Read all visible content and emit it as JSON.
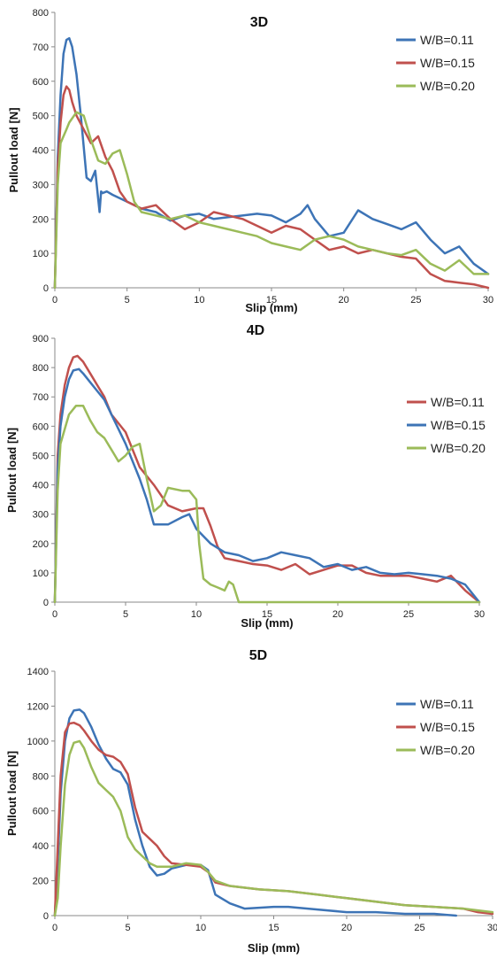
{
  "chart_data": [
    {
      "type": "line",
      "title": "3D",
      "xlabel": "Slip (mm)",
      "ylabel": "Pullout load [N]",
      "xlim": [
        0,
        30
      ],
      "ylim": [
        0,
        800
      ],
      "xticks": [
        0,
        5,
        10,
        15,
        20,
        25,
        30
      ],
      "yticks": [
        0,
        100,
        200,
        300,
        400,
        500,
        600,
        700,
        800
      ],
      "grid": false,
      "legend": "top-right",
      "series": [
        {
          "name": "W/B=0.11",
          "color": "#3d74b6",
          "x": [
            0,
            0.2,
            0.4,
            0.6,
            0.8,
            1.0,
            1.2,
            1.5,
            1.8,
            2.2,
            2.5,
            2.8,
            3.1,
            3.2,
            3.3,
            3.6,
            4.0,
            5.0,
            6.0,
            7.0,
            8.0,
            9.0,
            10.0,
            11.0,
            12.0,
            13.0,
            14.0,
            15.0,
            16.0,
            17.0,
            17.5,
            18.0,
            19.0,
            20.0,
            21.0,
            22.0,
            23.0,
            24.0,
            25.0,
            26.0,
            27.0,
            28.0,
            29.0,
            30.0
          ],
          "y": [
            0,
            380,
            560,
            680,
            720,
            725,
            700,
            620,
            500,
            320,
            310,
            340,
            220,
            280,
            275,
            280,
            270,
            250,
            230,
            220,
            195,
            210,
            215,
            200,
            205,
            210,
            215,
            210,
            190,
            215,
            240,
            200,
            150,
            160,
            225,
            200,
            185,
            170,
            190,
            140,
            100,
            120,
            70,
            40
          ]
        },
        {
          "name": "W/B=0.15",
          "color": "#c0504d",
          "x": [
            0,
            0.2,
            0.4,
            0.6,
            0.8,
            1.0,
            1.2,
            1.5,
            2.0,
            2.5,
            3.0,
            3.5,
            4.0,
            4.5,
            5.0,
            6.0,
            7.0,
            8.0,
            9.0,
            10.0,
            11.0,
            12.0,
            13.0,
            14.0,
            15.0,
            16.0,
            17.0,
            18.0,
            19.0,
            20.0,
            21.0,
            22.0,
            23.0,
            24.0,
            25.0,
            26.0,
            27.0,
            28.0,
            29.0,
            30.0
          ],
          "y": [
            0,
            350,
            480,
            560,
            585,
            575,
            540,
            500,
            460,
            420,
            440,
            380,
            340,
            280,
            250,
            230,
            240,
            200,
            170,
            190,
            220,
            210,
            200,
            180,
            160,
            180,
            170,
            140,
            110,
            120,
            100,
            110,
            100,
            90,
            85,
            40,
            20,
            15,
            10,
            0
          ]
        },
        {
          "name": "W/B=0.20",
          "color": "#9bbb59",
          "x": [
            0,
            0.2,
            0.4,
            0.6,
            0.8,
            1.0,
            1.5,
            2.0,
            2.5,
            3.0,
            3.5,
            4.0,
            4.5,
            5.0,
            5.5,
            6.0,
            7.0,
            8.0,
            9.0,
            10.0,
            11.0,
            12.0,
            13.0,
            14.0,
            15.0,
            16.0,
            17.0,
            18.0,
            19.0,
            20.0,
            21.0,
            22.0,
            23.0,
            24.0,
            25.0,
            26.0,
            27.0,
            28.0,
            29.0,
            30.0
          ],
          "y": [
            0,
            300,
            420,
            440,
            460,
            480,
            510,
            500,
            430,
            370,
            360,
            390,
            400,
            330,
            250,
            220,
            210,
            200,
            210,
            190,
            180,
            170,
            160,
            150,
            130,
            120,
            110,
            140,
            150,
            140,
            120,
            110,
            100,
            95,
            110,
            70,
            50,
            80,
            40,
            40
          ]
        }
      ]
    },
    {
      "type": "line",
      "title": "4D",
      "xlabel": "Slip (mm)",
      "ylabel": "Pullout load [N]",
      "xlim": [
        0,
        30
      ],
      "ylim": [
        0,
        900
      ],
      "xticks": [
        0,
        5,
        10,
        15,
        20,
        25,
        30
      ],
      "yticks": [
        0,
        100,
        200,
        300,
        400,
        500,
        600,
        700,
        800,
        900
      ],
      "grid": false,
      "legend": "top-right",
      "series": [
        {
          "name": "W/B=0.11",
          "color": "#c0504d",
          "x": [
            0,
            0.2,
            0.4,
            0.7,
            1.0,
            1.3,
            1.6,
            2.0,
            2.5,
            3.0,
            3.5,
            4.0,
            5.0,
            6.0,
            7.0,
            8.0,
            9.0,
            10.0,
            10.5,
            11.0,
            11.5,
            12.0,
            13.0,
            14.0,
            15.0,
            16.0,
            17.0,
            18.0,
            19.0,
            20.0,
            21.0,
            22.0,
            23.0,
            24.0,
            25.0,
            26.0,
            27.0,
            28.0,
            29.0,
            30.0
          ],
          "y": [
            0,
            500,
            640,
            740,
            800,
            835,
            840,
            820,
            780,
            740,
            700,
            640,
            580,
            460,
            400,
            330,
            310,
            320,
            320,
            260,
            190,
            150,
            140,
            130,
            125,
            110,
            130,
            95,
            110,
            125,
            125,
            100,
            90,
            90,
            90,
            80,
            70,
            90,
            40,
            0
          ]
        },
        {
          "name": "W/B=0.15",
          "color": "#3d74b6",
          "x": [
            0,
            0.2,
            0.4,
            0.7,
            1.0,
            1.3,
            1.7,
            2.0,
            2.5,
            3.0,
            3.5,
            4.0,
            5.0,
            6.0,
            6.5,
            7.0,
            8.0,
            9.0,
            9.5,
            10.0,
            11.0,
            12.0,
            13.0,
            14.0,
            15.0,
            16.0,
            17.0,
            18.0,
            19.0,
            20.0,
            21.0,
            22.0,
            23.0,
            24.0,
            25.0,
            26.0,
            27.0,
            28.0,
            29.0,
            30.0
          ],
          "y": [
            0,
            450,
            600,
            700,
            760,
            790,
            795,
            780,
            750,
            720,
            690,
            640,
            540,
            420,
            350,
            265,
            265,
            290,
            300,
            250,
            200,
            170,
            160,
            140,
            150,
            170,
            160,
            150,
            120,
            130,
            110,
            120,
            100,
            95,
            100,
            95,
            90,
            80,
            60,
            0
          ]
        },
        {
          "name": "W/B=0.20",
          "color": "#9bbb59",
          "x": [
            0,
            0.2,
            0.4,
            0.7,
            1.0,
            1.5,
            2.0,
            2.5,
            3.0,
            3.5,
            4.0,
            4.5,
            5.0,
            5.5,
            6.0,
            6.5,
            7.0,
            7.5,
            8.0,
            9.0,
            9.5,
            10.0,
            10.2,
            10.5,
            11.0,
            11.5,
            12.0,
            12.3,
            12.6,
            13.0,
            14.0,
            15.0,
            20.0,
            25.0,
            30.0
          ],
          "y": [
            0,
            380,
            540,
            590,
            640,
            670,
            670,
            620,
            580,
            560,
            520,
            480,
            500,
            530,
            540,
            420,
            310,
            330,
            390,
            380,
            380,
            350,
            200,
            80,
            60,
            50,
            40,
            70,
            60,
            0,
            0,
            0,
            0,
            0,
            0
          ]
        }
      ]
    },
    {
      "type": "line",
      "title": "5D",
      "xlabel": "Slip (mm)",
      "ylabel": "Pullout load [N]",
      "xlim": [
        0,
        30
      ],
      "ylim": [
        0,
        1400
      ],
      "xticks": [
        0,
        5,
        10,
        15,
        20,
        25,
        30
      ],
      "yticks": [
        0,
        200,
        400,
        600,
        800,
        1000,
        1200,
        1400
      ],
      "grid": false,
      "legend": "top-right",
      "series": [
        {
          "name": "W/B=0.11",
          "color": "#3d74b6",
          "x": [
            0,
            0.2,
            0.4,
            0.7,
            1.0,
            1.3,
            1.7,
            2.0,
            2.5,
            3.0,
            3.5,
            4.0,
            4.5,
            5.0,
            5.5,
            6.0,
            6.5,
            7.0,
            7.5,
            8.0,
            9.0,
            10.0,
            10.5,
            11.0,
            12.0,
            13.0,
            14.0,
            15.0,
            16.0,
            18.0,
            20.0,
            22.0,
            24.0,
            26.0,
            27.5
          ],
          "y": [
            0,
            300,
            700,
            1000,
            1130,
            1175,
            1180,
            1160,
            1080,
            980,
            900,
            840,
            820,
            750,
            550,
            400,
            280,
            230,
            240,
            270,
            290,
            290,
            260,
            120,
            70,
            40,
            45,
            50,
            50,
            35,
            20,
            20,
            10,
            10,
            0
          ]
        },
        {
          "name": "W/B=0.15",
          "color": "#c0504d",
          "x": [
            0,
            0.2,
            0.4,
            0.7,
            1.0,
            1.3,
            1.7,
            2.0,
            2.5,
            3.0,
            3.5,
            4.0,
            4.5,
            5.0,
            5.5,
            6.0,
            6.5,
            7.0,
            7.5,
            8.0,
            9.0,
            10.0,
            10.5,
            11.0,
            12.0,
            14.0,
            16.0,
            18.0,
            20.0,
            22.0,
            24.0,
            26.0,
            28.0,
            29.0,
            30.0
          ],
          "y": [
            0,
            400,
            800,
            1050,
            1100,
            1105,
            1090,
            1060,
            1000,
            950,
            920,
            910,
            880,
            810,
            620,
            480,
            440,
            400,
            340,
            300,
            290,
            280,
            250,
            190,
            170,
            150,
            140,
            120,
            100,
            80,
            60,
            50,
            40,
            20,
            10
          ]
        },
        {
          "name": "W/B=0.20",
          "color": "#9bbb59",
          "x": [
            0,
            0.2,
            0.4,
            0.7,
            1.0,
            1.3,
            1.7,
            2.0,
            2.5,
            3.0,
            3.5,
            4.0,
            4.5,
            5.0,
            5.5,
            6.0,
            6.5,
            7.0,
            8.0,
            9.0,
            10.0,
            10.5,
            11.0,
            12.0,
            14.0,
            16.0,
            18.0,
            20.0,
            22.0,
            24.0,
            26.0,
            28.0,
            29.0,
            30.0
          ],
          "y": [
            0,
            100,
            400,
            750,
            920,
            990,
            1000,
            960,
            850,
            760,
            720,
            680,
            600,
            450,
            380,
            340,
            300,
            280,
            280,
            300,
            290,
            250,
            200,
            170,
            150,
            140,
            120,
            100,
            80,
            60,
            50,
            40,
            30,
            20
          ]
        }
      ]
    }
  ]
}
